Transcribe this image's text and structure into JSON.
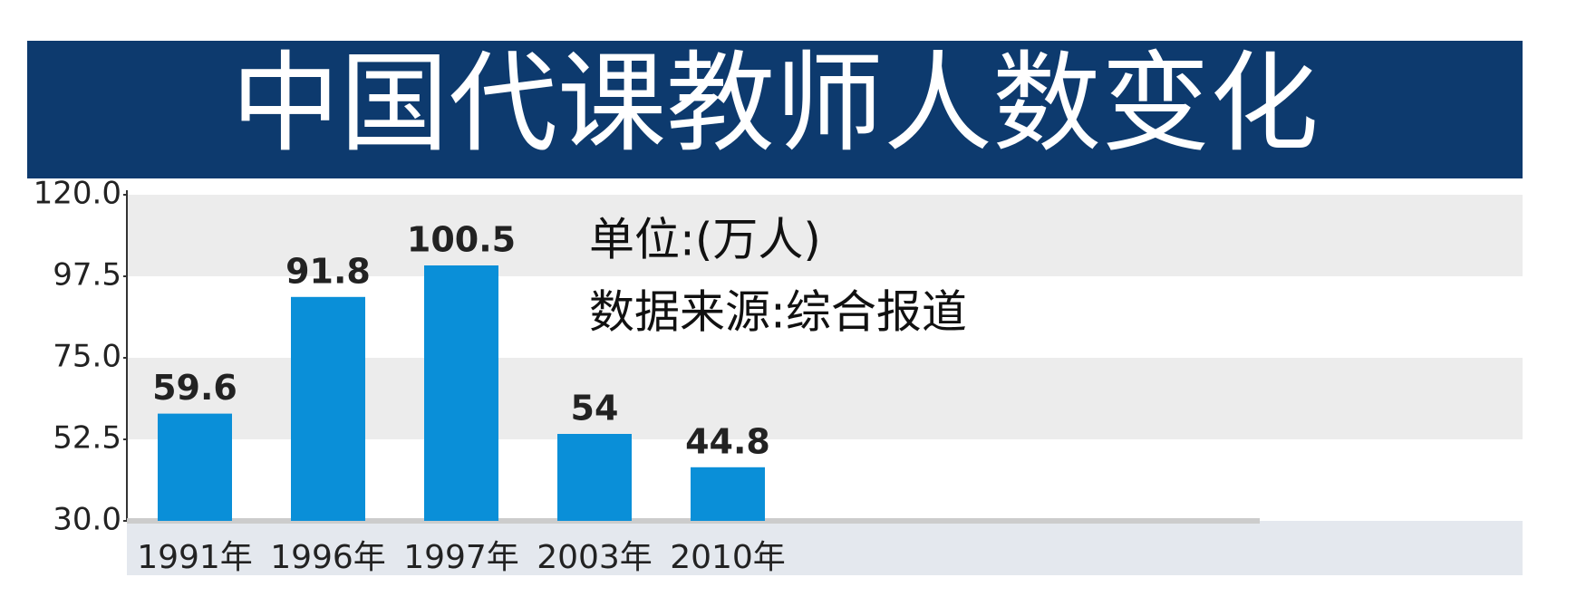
{
  "chart_data": {
    "type": "bar",
    "title": "中国代课教师人数变化",
    "annotations": [
      "单位:(万人)",
      "数据来源:综合报道"
    ],
    "categories": [
      "1991年",
      "1996年",
      "1997年",
      "2003年",
      "2010年"
    ],
    "values": [
      59.6,
      91.8,
      100.5,
      54,
      44.8
    ],
    "color": "#0a8fd8",
    "ylim": [
      30,
      120
    ],
    "yticks": [
      {
        "value": 30,
        "label": "30.0"
      },
      52.5,
      {
        "value": 75,
        "label": "75.0"
      },
      97.5,
      {
        "value": 120,
        "label": "120.0"
      }
    ],
    "grid": true
  }
}
